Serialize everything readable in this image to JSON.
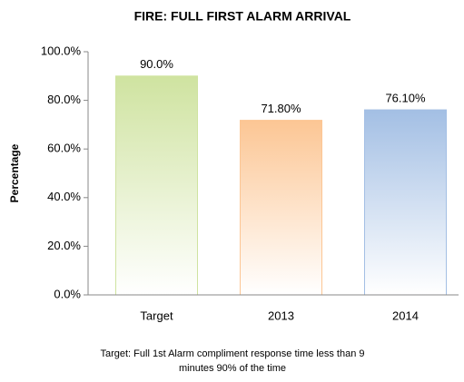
{
  "chart_data": {
    "type": "bar",
    "title": "FIRE: FULL FIRST ALARM ARRIVAL",
    "y_label": "Percentage",
    "categories": [
      "Target",
      "2013",
      "2014"
    ],
    "values": [
      90,
      71.8,
      76.1
    ],
    "value_labels": [
      "90.0%",
      "71.80%",
      "76.10%"
    ],
    "colors": [
      "#cfe3a0",
      "#fcc694",
      "#a3bfe4"
    ],
    "ylim": [
      0,
      100
    ],
    "yticks": [
      {
        "value": 0,
        "label": "0.0%"
      },
      {
        "value": 20,
        "label": "20.0%"
      },
      {
        "value": 40,
        "label": "40.0%"
      },
      {
        "value": 60,
        "label": "60.0%"
      },
      {
        "value": 80,
        "label": "80.0%"
      },
      {
        "value": 100,
        "label": "100.0%"
      }
    ],
    "grid": false,
    "note": [
      "Target:  Full 1st Alarm compliment response time less than 9",
      "minutes 90% of the time"
    ]
  }
}
